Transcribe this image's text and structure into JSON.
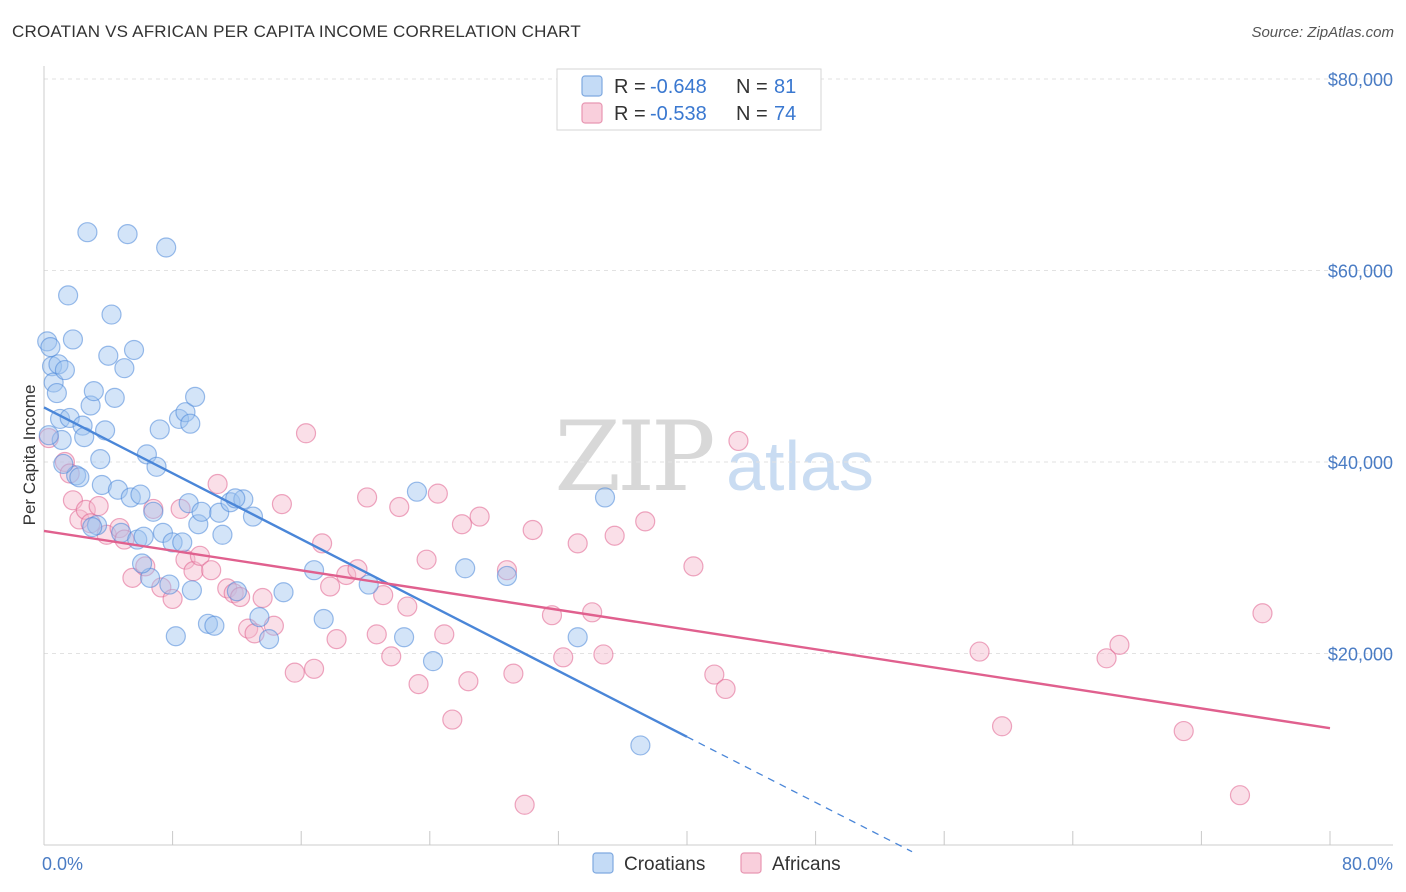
{
  "header": {
    "title": "CROATIAN VS AFRICAN PER CAPITA INCOME CORRELATION CHART",
    "source": "Source: ZipAtlas.com"
  },
  "watermark": {
    "zip": "ZIP",
    "atlas": "atlas"
  },
  "legend_top": [
    {
      "r_label": "R =",
      "r_value": "-0.648",
      "n_label": "N =",
      "n_value": "81",
      "color": "#9dc3f0"
    },
    {
      "r_label": "R =",
      "r_value": "-0.538",
      "n_label": "N = ",
      "n_value": "74",
      "color": "#f5b8cc"
    }
  ],
  "legend_bottom": [
    {
      "label": "Croatians",
      "color": "#9dc3f0"
    },
    {
      "label": "Africans",
      "color": "#f5b8cc"
    }
  ],
  "chart_data": {
    "type": "scatter",
    "title": "CROATIAN VS AFRICAN PER CAPITA INCOME CORRELATION CHART",
    "xlabel": "",
    "ylabel": "Per Capita Income",
    "xlim": [
      0,
      80
    ],
    "ylim": [
      0,
      80000
    ],
    "x_tick_labels": [
      "0.0%",
      "80.0%"
    ],
    "y_ticks": [
      20000,
      40000,
      60000,
      80000
    ],
    "y_tick_labels": [
      "$20,000",
      "$40,000",
      "$60,000",
      "$80,000"
    ],
    "grid": true,
    "legend_placement": "top-center and bottom-center",
    "series": [
      {
        "name": "Croatians",
        "color": "#4a86d8",
        "fill": "#9dc3f0",
        "r": -0.648,
        "n": 81,
        "trend": {
          "x0": 0,
          "y0": 45700,
          "x1": 40,
          "y1": 11300,
          "dashed_to_x": 54,
          "dashed_to_y": -700
        },
        "points": [
          [
            0.2,
            52600
          ],
          [
            0.4,
            52000
          ],
          [
            0.5,
            50000
          ],
          [
            0.6,
            48300
          ],
          [
            0.8,
            47200
          ],
          [
            0.9,
            50200
          ],
          [
            1.0,
            44500
          ],
          [
            1.1,
            42300
          ],
          [
            1.3,
            49600
          ],
          [
            1.5,
            57400
          ],
          [
            1.6,
            44600
          ],
          [
            1.8,
            52800
          ],
          [
            2.0,
            38600
          ],
          [
            2.2,
            38400
          ],
          [
            2.4,
            43800
          ],
          [
            2.5,
            42600
          ],
          [
            2.7,
            64000
          ],
          [
            2.9,
            45900
          ],
          [
            3.1,
            47400
          ],
          [
            3.3,
            33400
          ],
          [
            3.5,
            40300
          ],
          [
            3.6,
            37600
          ],
          [
            3.8,
            43300
          ],
          [
            4.0,
            51100
          ],
          [
            4.2,
            55400
          ],
          [
            4.4,
            46700
          ],
          [
            4.6,
            37100
          ],
          [
            4.8,
            32600
          ],
          [
            5.0,
            49800
          ],
          [
            5.2,
            63800
          ],
          [
            5.4,
            36300
          ],
          [
            5.6,
            51700
          ],
          [
            5.8,
            31900
          ],
          [
            6.0,
            36600
          ],
          [
            6.2,
            32200
          ],
          [
            6.4,
            40800
          ],
          [
            6.6,
            27900
          ],
          [
            6.8,
            34800
          ],
          [
            7.0,
            39500
          ],
          [
            7.2,
            43400
          ],
          [
            7.4,
            32600
          ],
          [
            7.6,
            62400
          ],
          [
            7.8,
            27200
          ],
          [
            8.0,
            31600
          ],
          [
            8.2,
            21800
          ],
          [
            8.4,
            44500
          ],
          [
            8.6,
            31600
          ],
          [
            8.8,
            45200
          ],
          [
            9.0,
            35700
          ],
          [
            9.2,
            26600
          ],
          [
            9.4,
            46800
          ],
          [
            9.6,
            33500
          ],
          [
            9.8,
            34800
          ],
          [
            10.2,
            23100
          ],
          [
            10.6,
            22900
          ],
          [
            10.9,
            34700
          ],
          [
            11.1,
            32400
          ],
          [
            11.6,
            35800
          ],
          [
            12.0,
            26500
          ],
          [
            12.4,
            36100
          ],
          [
            13.0,
            34300
          ],
          [
            13.4,
            23800
          ],
          [
            14.0,
            21500
          ],
          [
            16.8,
            28700
          ],
          [
            17.4,
            23600
          ],
          [
            20.2,
            27200
          ],
          [
            22.4,
            21700
          ],
          [
            23.2,
            36900
          ],
          [
            24.2,
            19200
          ],
          [
            26.2,
            28900
          ],
          [
            28.8,
            28100
          ],
          [
            33.2,
            21700
          ],
          [
            34.9,
            36300
          ],
          [
            37.1,
            10400
          ],
          [
            0.3,
            42800
          ],
          [
            1.2,
            39800
          ],
          [
            3.0,
            33200
          ],
          [
            6.1,
            29400
          ],
          [
            9.1,
            44000
          ],
          [
            11.9,
            36200
          ],
          [
            14.9,
            26400
          ]
        ]
      },
      {
        "name": "Africans",
        "color": "#e0608e",
        "fill": "#f5b8cc",
        "r": -0.538,
        "n": 74,
        "trend": {
          "x0": 0,
          "y0": 32800,
          "x1": 80,
          "y1": 12200
        },
        "points": [
          [
            0.3,
            42500
          ],
          [
            1.3,
            40000
          ],
          [
            1.6,
            38800
          ],
          [
            1.8,
            36000
          ],
          [
            2.2,
            34000
          ],
          [
            2.6,
            35000
          ],
          [
            2.9,
            33600
          ],
          [
            3.4,
            35400
          ],
          [
            3.9,
            32400
          ],
          [
            4.7,
            33100
          ],
          [
            5.0,
            31900
          ],
          [
            5.5,
            27900
          ],
          [
            6.3,
            29100
          ],
          [
            6.8,
            35100
          ],
          [
            7.3,
            26900
          ],
          [
            8.0,
            25700
          ],
          [
            8.5,
            35100
          ],
          [
            8.8,
            29800
          ],
          [
            9.3,
            28600
          ],
          [
            9.7,
            30200
          ],
          [
            10.4,
            28700
          ],
          [
            10.8,
            37700
          ],
          [
            11.4,
            26800
          ],
          [
            11.8,
            26300
          ],
          [
            12.2,
            25900
          ],
          [
            12.7,
            22600
          ],
          [
            13.1,
            22100
          ],
          [
            13.6,
            25800
          ],
          [
            14.3,
            22900
          ],
          [
            14.8,
            35600
          ],
          [
            15.6,
            18000
          ],
          [
            16.3,
            43000
          ],
          [
            16.8,
            18400
          ],
          [
            17.3,
            31500
          ],
          [
            17.8,
            27000
          ],
          [
            18.2,
            21500
          ],
          [
            18.8,
            28200
          ],
          [
            19.5,
            28800
          ],
          [
            20.1,
            36300
          ],
          [
            20.7,
            22000
          ],
          [
            21.1,
            26100
          ],
          [
            21.6,
            19700
          ],
          [
            22.1,
            35300
          ],
          [
            22.6,
            24900
          ],
          [
            23.3,
            16800
          ],
          [
            23.8,
            29800
          ],
          [
            24.5,
            36700
          ],
          [
            24.9,
            22000
          ],
          [
            25.4,
            13100
          ],
          [
            26.0,
            33500
          ],
          [
            26.4,
            17100
          ],
          [
            27.1,
            34300
          ],
          [
            28.8,
            28700
          ],
          [
            29.2,
            17900
          ],
          [
            29.9,
            4200
          ],
          [
            30.4,
            32900
          ],
          [
            31.6,
            24000
          ],
          [
            32.3,
            19600
          ],
          [
            33.2,
            31500
          ],
          [
            34.1,
            24300
          ],
          [
            34.8,
            19900
          ],
          [
            35.5,
            32300
          ],
          [
            37.4,
            33800
          ],
          [
            40.4,
            29100
          ],
          [
            41.7,
            17800
          ],
          [
            42.4,
            16300
          ],
          [
            43.2,
            42200
          ],
          [
            58.2,
            20200
          ],
          [
            59.6,
            12400
          ],
          [
            66.1,
            19500
          ],
          [
            66.9,
            20900
          ],
          [
            70.9,
            11900
          ],
          [
            74.4,
            5200
          ],
          [
            75.8,
            24200
          ]
        ]
      }
    ]
  }
}
